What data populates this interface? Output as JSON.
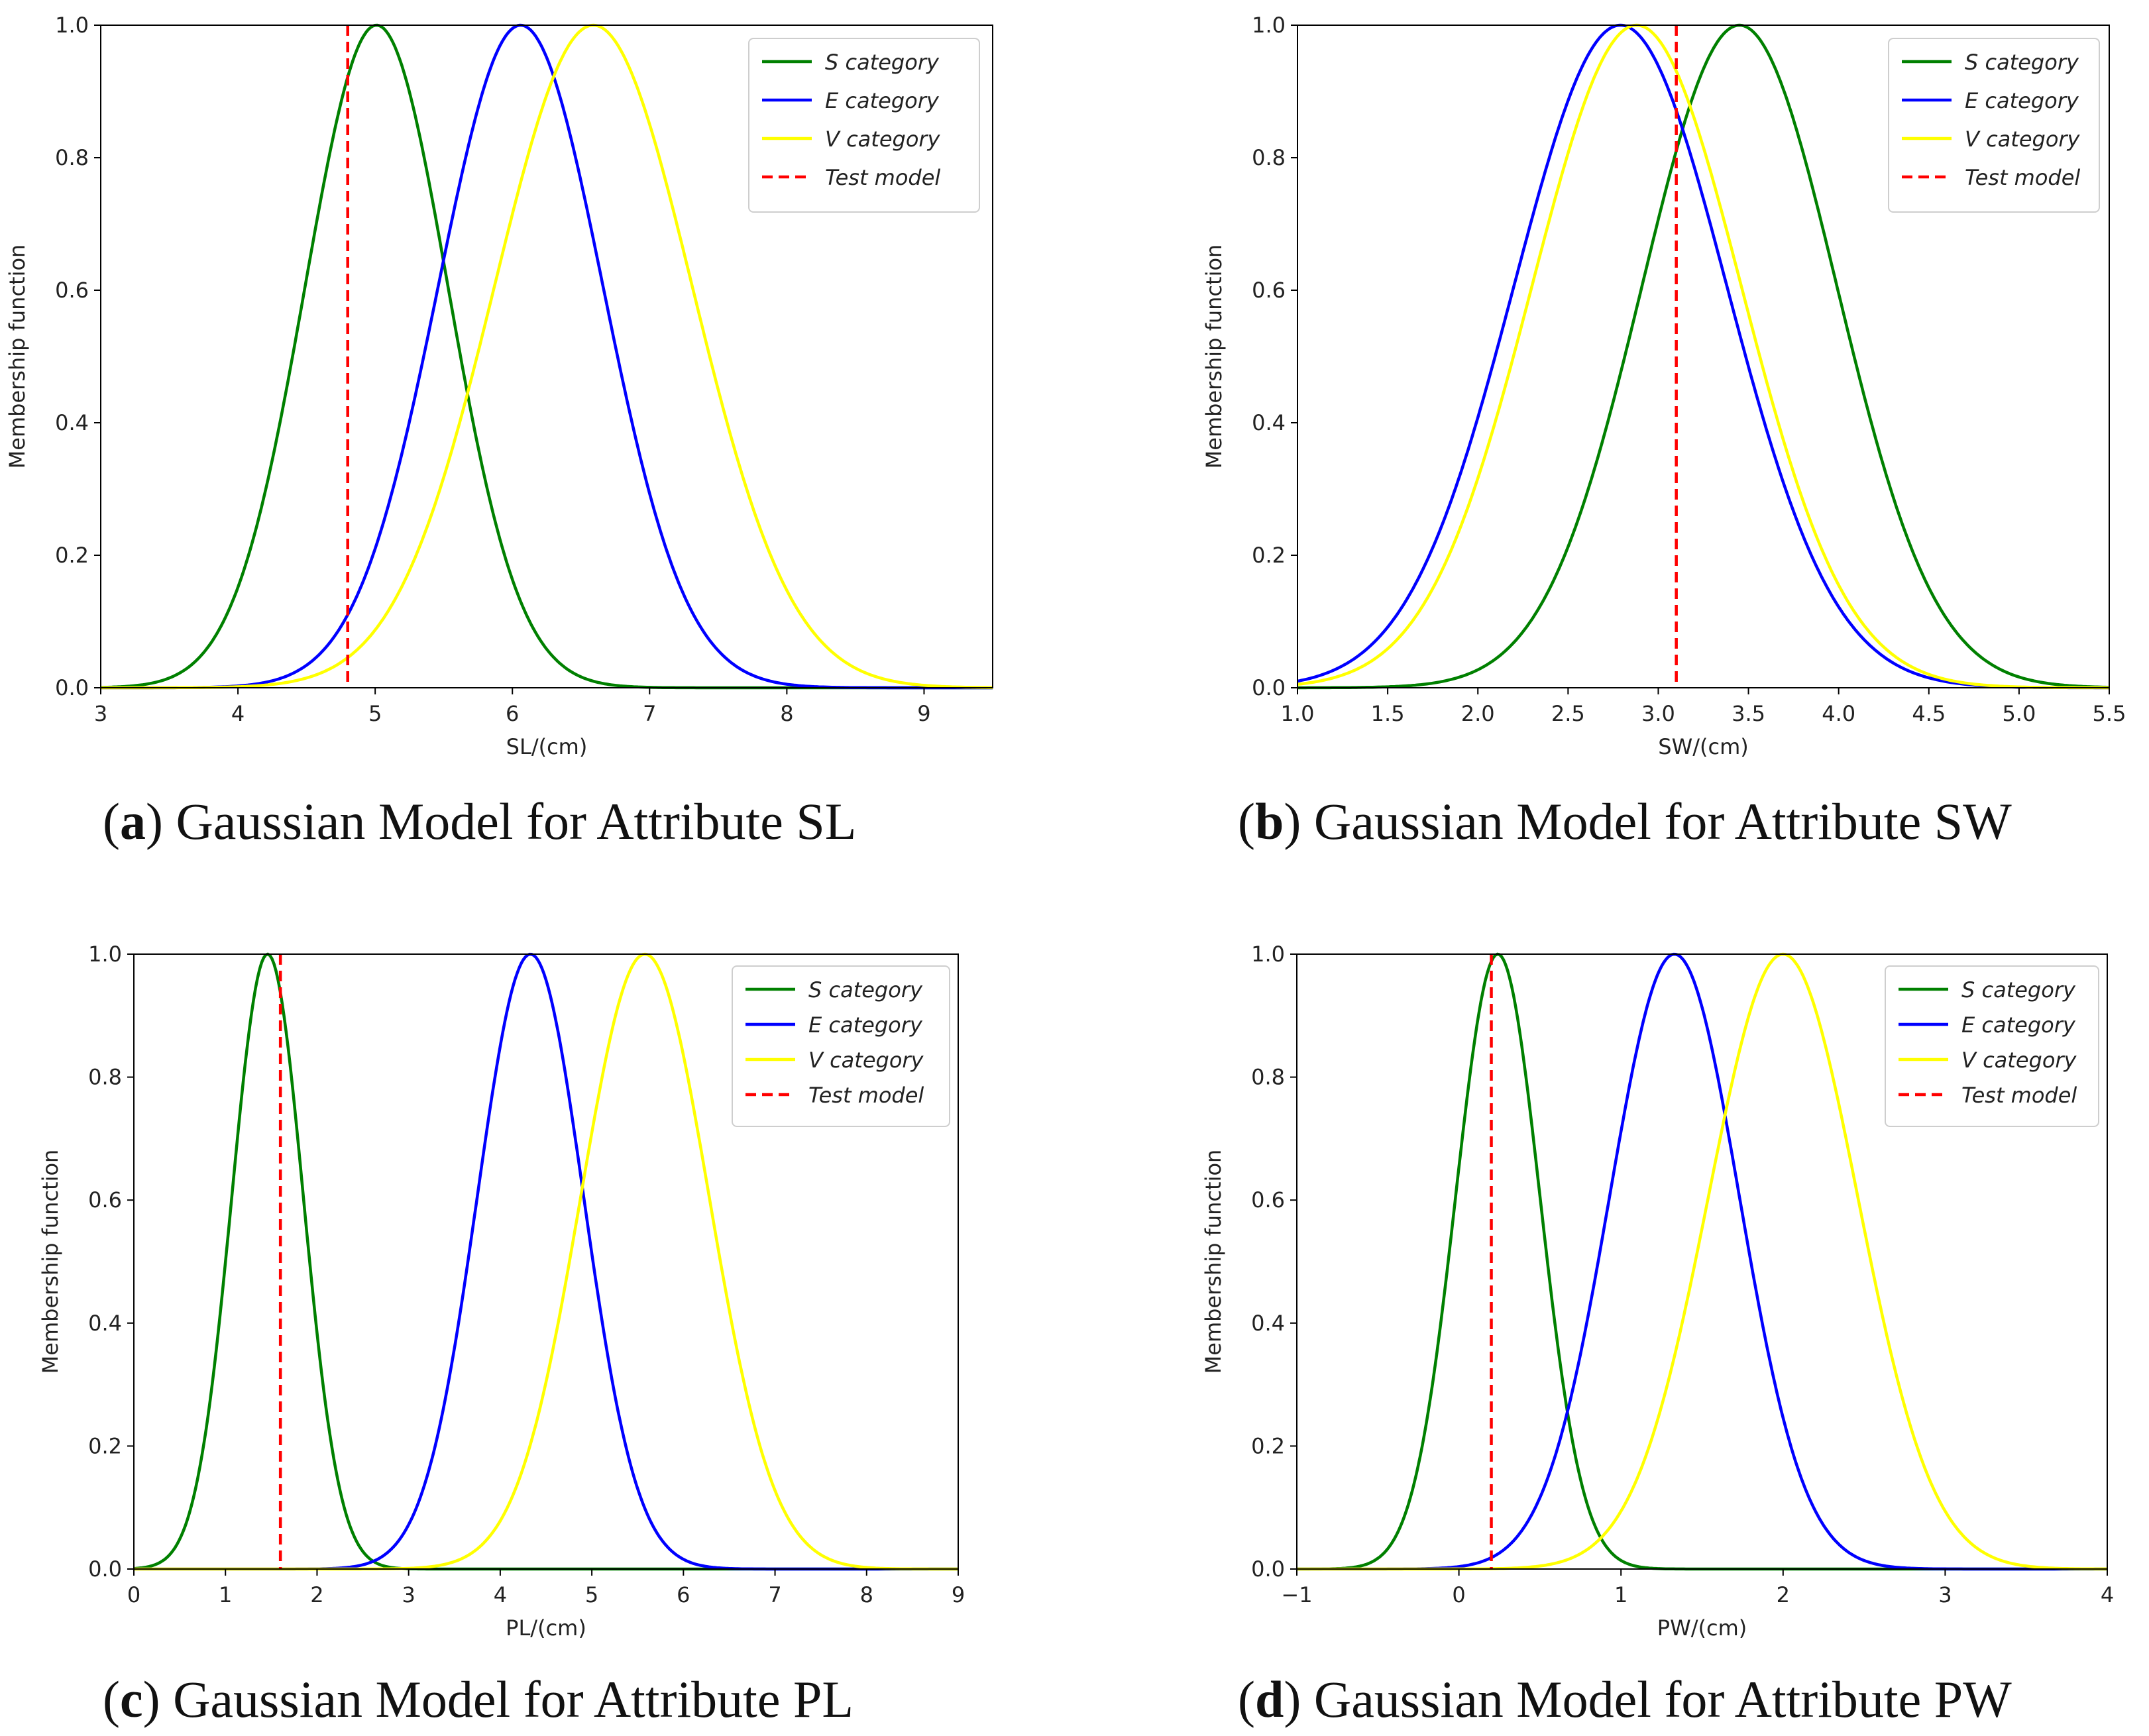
{
  "charts": [
    {
      "id": "a",
      "caption": {
        "letter": "a",
        "text": "Gaussian Model for Attribute SL"
      },
      "chart_data": {
        "type": "line",
        "title": "",
        "xlabel": "SL/(cm)",
        "ylabel": "Membership function",
        "xlim": [
          3,
          9.5
        ],
        "ylim": [
          0,
          1
        ],
        "xticks": [
          3,
          4,
          5,
          6,
          7,
          8,
          9
        ],
        "xtick_labels": [
          "3",
          "4",
          "5",
          "6",
          "7",
          "8",
          "9"
        ],
        "yticks": [
          0,
          0.2,
          0.4,
          0.6,
          0.8,
          1.0
        ],
        "ytick_labels": [
          "0.0",
          "0.2",
          "0.4",
          "0.6",
          "0.8",
          "1.0"
        ],
        "legend_position": "top-right",
        "series": [
          {
            "name": "S category",
            "color": "#008000",
            "style": "solid",
            "mean": 5.01,
            "sigma": 0.52
          },
          {
            "name": "E category",
            "color": "#0000ff",
            "style": "solid",
            "mean": 6.06,
            "sigma": 0.6
          },
          {
            "name": "V category",
            "color": "#ffff00",
            "style": "solid",
            "mean": 6.59,
            "sigma": 0.72
          },
          {
            "name": "Test model",
            "color": "#ff0000",
            "style": "dashed",
            "x": 4.8
          }
        ]
      }
    },
    {
      "id": "b",
      "caption": {
        "letter": "b",
        "text": "Gaussian Model for Attribute SW"
      },
      "chart_data": {
        "type": "line",
        "title": "",
        "xlabel": "SW/(cm)",
        "ylabel": "Membership function",
        "xlim": [
          1.0,
          5.5
        ],
        "ylim": [
          0,
          1
        ],
        "xticks": [
          1.0,
          1.5,
          2.0,
          2.5,
          3.0,
          3.5,
          4.0,
          4.5,
          5.0,
          5.5
        ],
        "xtick_labels": [
          "1.0",
          "1.5",
          "2.0",
          "2.5",
          "3.0",
          "3.5",
          "4.0",
          "4.5",
          "5.0",
          "5.5"
        ],
        "yticks": [
          0,
          0.2,
          0.4,
          0.6,
          0.8,
          1.0
        ],
        "ytick_labels": [
          "0.0",
          "0.2",
          "0.4",
          "0.6",
          "0.8",
          "1.0"
        ],
        "legend_position": "top-right",
        "series": [
          {
            "name": "S category",
            "color": "#008000",
            "style": "solid",
            "mean": 3.45,
            "sigma": 0.54
          },
          {
            "name": "E category",
            "color": "#0000ff",
            "style": "solid",
            "mean": 2.79,
            "sigma": 0.59
          },
          {
            "name": "V category",
            "color": "#ffff00",
            "style": "solid",
            "mean": 2.88,
            "sigma": 0.58
          },
          {
            "name": "Test model",
            "color": "#ff0000",
            "style": "dashed",
            "x": 3.1
          }
        ]
      }
    },
    {
      "id": "c",
      "caption": {
        "letter": "c",
        "text": "Gaussian Model for Attribute PL"
      },
      "chart_data": {
        "type": "line",
        "title": "",
        "xlabel": "PL/(cm)",
        "ylabel": "Membership function",
        "xlim": [
          0,
          9
        ],
        "ylim": [
          0,
          1
        ],
        "xticks": [
          0,
          1,
          2,
          3,
          4,
          5,
          6,
          7,
          8,
          9
        ],
        "xtick_labels": [
          "0",
          "1",
          "2",
          "3",
          "4",
          "5",
          "6",
          "7",
          "8",
          "9"
        ],
        "yticks": [
          0,
          0.2,
          0.4,
          0.6,
          0.8,
          1.0
        ],
        "ytick_labels": [
          "0.0",
          "0.2",
          "0.4",
          "0.6",
          "0.8",
          "1.0"
        ],
        "legend_position": "top-right",
        "series": [
          {
            "name": "S category",
            "color": "#008000",
            "style": "solid",
            "mean": 1.46,
            "sigma": 0.39
          },
          {
            "name": "E category",
            "color": "#0000ff",
            "style": "solid",
            "mean": 4.33,
            "sigma": 0.58
          },
          {
            "name": "V category",
            "color": "#ffff00",
            "style": "solid",
            "mean": 5.58,
            "sigma": 0.7
          },
          {
            "name": "Test model",
            "color": "#ff0000",
            "style": "dashed",
            "x": 1.6
          }
        ]
      }
    },
    {
      "id": "d",
      "caption": {
        "letter": "d",
        "text": "Gaussian Model for Attribute PW"
      },
      "chart_data": {
        "type": "line",
        "title": "",
        "xlabel": "PW/(cm)",
        "ylabel": "Membership function",
        "xlim": [
          -1,
          4
        ],
        "ylim": [
          0,
          1
        ],
        "xticks": [
          -1,
          0,
          1,
          2,
          3,
          4
        ],
        "xtick_labels": [
          "−1",
          "0",
          "1",
          "2",
          "3",
          "4"
        ],
        "yticks": [
          0,
          0.2,
          0.4,
          0.6,
          0.8,
          1.0
        ],
        "ytick_labels": [
          "0.0",
          "0.2",
          "0.4",
          "0.6",
          "0.8",
          "1.0"
        ],
        "legend_position": "top-right",
        "series": [
          {
            "name": "S category",
            "color": "#008000",
            "style": "solid",
            "mean": 0.24,
            "sigma": 0.26
          },
          {
            "name": "E category",
            "color": "#0000ff",
            "style": "solid",
            "mean": 1.33,
            "sigma": 0.4
          },
          {
            "name": "V category",
            "color": "#ffff00",
            "style": "solid",
            "mean": 2.0,
            "sigma": 0.46
          },
          {
            "name": "Test model",
            "color": "#ff0000",
            "style": "dashed",
            "x": 0.2
          }
        ]
      }
    }
  ]
}
